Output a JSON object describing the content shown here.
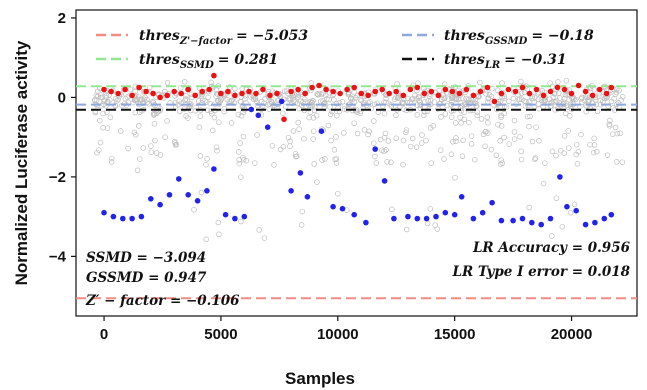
{
  "chart_data": {
    "type": "scatter",
    "xlabel": "Samples",
    "ylabel": "Normalized Luciferase activity",
    "xlim": [
      -1200,
      22800
    ],
    "ylim": [
      -5.5,
      2.2
    ],
    "xticks": [
      0,
      5000,
      10000,
      15000,
      20000
    ],
    "yticks": [
      2,
      0,
      -2,
      -4
    ],
    "grid": false,
    "legend_position": "top",
    "thresholds": [
      {
        "key": "zfactor",
        "label": "thres",
        "sub": "Z'−factor",
        "value_text": "= −5.053",
        "value": -5.053,
        "color": "#f28b82"
      },
      {
        "key": "ssmd",
        "label": "thres",
        "sub": "SSMD",
        "value_text": "= 0.281",
        "value": 0.281,
        "color": "#90e890"
      },
      {
        "key": "gssmd",
        "label": "thres",
        "sub": "GSSMD",
        "value_text": "= −0.18",
        "value": -0.18,
        "color": "#8fa8e0"
      },
      {
        "key": "lr",
        "label": "thres",
        "sub": "LR",
        "value_text": "= −0.31",
        "value": -0.31,
        "color": "#111111"
      }
    ],
    "annotations_left": [
      "SSMD = −3.094",
      "GSSMD = 0.947",
      "Z′ − factor = −0.106"
    ],
    "annotations_right": [
      "LR Accuracy = 0.956",
      "LR Type I error = 0.018"
    ],
    "series": [
      {
        "color": "#2222ee",
        "x": [
          0,
          400,
          800,
          1200,
          1600,
          2000,
          2400,
          2800,
          3200,
          3600,
          4000,
          4400,
          4700,
          5200,
          5600,
          6000,
          6300,
          6600,
          7000,
          7600,
          8000,
          8400,
          8700,
          9300,
          9800,
          10200,
          10700,
          11200,
          11600,
          12000,
          12400,
          13000,
          13400,
          13800,
          14200,
          14600,
          15000,
          15300,
          15800,
          16200,
          16600,
          17000,
          17500,
          17900,
          18300,
          18700,
          19100,
          19500,
          19800,
          20200,
          20600,
          21000,
          21400,
          21700
        ],
        "y": [
          -2.9,
          -3.0,
          -3.05,
          -3.05,
          -3.0,
          -2.55,
          -2.7,
          -2.45,
          -2.05,
          -2.45,
          -2.6,
          -2.35,
          -1.8,
          -2.95,
          -3.05,
          -3.0,
          -0.3,
          -0.45,
          -0.75,
          -0.1,
          -2.35,
          -1.9,
          -2.5,
          -0.85,
          -2.75,
          -2.8,
          -2.95,
          -3.15,
          -1.3,
          -2.1,
          -3.05,
          -3.0,
          -3.05,
          -3.05,
          -3.0,
          -2.9,
          -2.95,
          -2.5,
          -3.05,
          -2.9,
          -2.65,
          -3.1,
          -3.1,
          -3.05,
          -3.15,
          -3.2,
          -3.05,
          -2.0,
          -2.75,
          -2.85,
          -3.2,
          -3.15,
          -3.05,
          -2.95
        ]
      },
      {
        "color": "#ee1111",
        "x": [
          0,
          300,
          600,
          900,
          1200,
          1500,
          1800,
          2100,
          2400,
          2700,
          3000,
          3300,
          3600,
          3900,
          4200,
          4500,
          4700,
          5000,
          5300,
          5600,
          5900,
          6200,
          6500,
          6800,
          7100,
          7400,
          7700,
          8000,
          8300,
          8600,
          8900,
          9200,
          9500,
          9800,
          10100,
          10400,
          10700,
          11000,
          11300,
          11600,
          11900,
          12200,
          12500,
          12800,
          13100,
          13400,
          13700,
          14000,
          14300,
          14600,
          14900,
          15200,
          15500,
          15800,
          16100,
          16400,
          16700,
          17000,
          17300,
          17600,
          17900,
          18200,
          18500,
          18800,
          19100,
          19400,
          19700,
          20000,
          20300,
          20600,
          20900,
          21200,
          21500,
          21700
        ],
        "y": [
          0.2,
          0.15,
          0.1,
          0.2,
          0.05,
          0.25,
          0.15,
          0.1,
          0.0,
          0.05,
          0.15,
          0.1,
          0.2,
          0.05,
          0.15,
          0.2,
          0.55,
          0.1,
          0.15,
          0.05,
          0.1,
          0.15,
          0.1,
          0.2,
          0.05,
          0.1,
          -0.55,
          0.15,
          0.2,
          0.1,
          0.25,
          0.3,
          0.2,
          0.15,
          0.1,
          0.2,
          0.25,
          0.1,
          0.05,
          0.15,
          0.2,
          0.1,
          0.15,
          0.05,
          0.2,
          0.25,
          0.1,
          0.15,
          0.05,
          0.2,
          0.15,
          0.1,
          0.2,
          0.05,
          0.15,
          0.25,
          -0.1,
          0.1,
          0.2,
          0.15,
          0.25,
          0.1,
          0.2,
          0.05,
          0.15,
          0.25,
          0.2,
          0.1,
          0.3,
          0.15,
          0.05,
          0.2,
          0.1,
          0.25
        ]
      }
    ]
  }
}
